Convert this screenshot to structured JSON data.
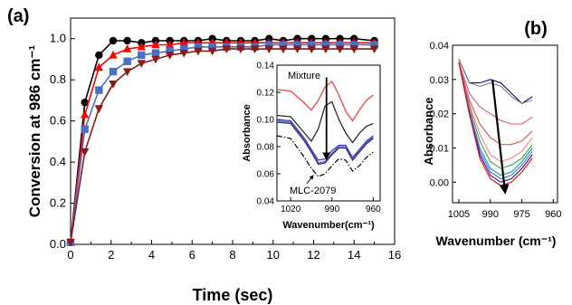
{
  "panel_labels": {
    "a": "(a)",
    "b": "(b)"
  },
  "chart_data": [
    {
      "panel": "(a)",
      "type": "line",
      "xlabel": "Time (sec)",
      "ylabel": "Conversion at 986 cm⁻¹",
      "xlim": [
        0,
        16
      ],
      "ylim": [
        0,
        1.1
      ],
      "xticks": [
        "0",
        "2",
        "4",
        "6",
        "8",
        "10",
        "12",
        "14",
        "16"
      ],
      "yticks": [
        "0.0",
        "0.2",
        "0.4",
        "0.6",
        "0.8",
        "1.0"
      ],
      "grid": false,
      "series": [
        {
          "marker": "circle",
          "color": "#000000",
          "x": [
            0,
            0.7,
            1.4,
            2.1,
            2.8,
            3.5,
            4.2,
            4.9,
            5.6,
            6.3,
            7.0,
            7.7,
            8.4,
            9.1,
            9.8,
            10.5,
            11.2,
            11.9,
            12.6,
            13.3,
            14.0,
            15.0
          ],
          "y": [
            0.01,
            0.69,
            0.92,
            0.99,
            0.99,
            0.98,
            0.99,
            0.99,
            0.99,
            0.99,
            1.0,
            0.99,
            0.99,
            0.99,
            1.0,
            0.99,
            1.0,
            1.0,
            1.0,
            1.0,
            1.0,
            0.99
          ]
        },
        {
          "marker": "triangle-up",
          "color": "#ff0000",
          "x": [
            0,
            0.7,
            1.4,
            2.1,
            2.8,
            3.5,
            4.2,
            4.9,
            5.6,
            6.3,
            7.0,
            7.7,
            8.4,
            9.1,
            9.8,
            10.5,
            11.2,
            11.9,
            12.6,
            13.3,
            14.0,
            15.0
          ],
          "y": [
            0.01,
            0.63,
            0.86,
            0.92,
            0.95,
            0.96,
            0.97,
            0.97,
            0.98,
            0.98,
            0.98,
            0.98,
            0.98,
            0.98,
            0.98,
            0.98,
            0.98,
            0.98,
            0.98,
            0.98,
            0.98,
            0.98
          ]
        },
        {
          "marker": "square",
          "color": "#4a6fc8",
          "x": [
            0,
            0.7,
            1.4,
            2.1,
            2.8,
            3.5,
            4.2,
            4.9,
            5.6,
            6.3,
            7.0,
            7.7,
            8.4,
            9.1,
            9.8,
            10.5,
            11.2,
            11.9,
            12.6,
            13.3,
            14.0,
            15.0
          ],
          "y": [
            0.01,
            0.56,
            0.75,
            0.84,
            0.89,
            0.92,
            0.93,
            0.94,
            0.95,
            0.96,
            0.96,
            0.96,
            0.96,
            0.96,
            0.97,
            0.97,
            0.97,
            0.97,
            0.97,
            0.97,
            0.97,
            0.97
          ]
        },
        {
          "marker": "triangle-down",
          "color": "#8b1a1a",
          "x": [
            0,
            0.7,
            1.4,
            2.1,
            2.8,
            3.5,
            4.2,
            4.9,
            5.6,
            6.3,
            7.0,
            7.7,
            8.4,
            9.1,
            9.8,
            10.5,
            11.2,
            11.9,
            12.6,
            13.3,
            14.0,
            15.0
          ],
          "y": [
            0.01,
            0.45,
            0.66,
            0.78,
            0.84,
            0.88,
            0.9,
            0.92,
            0.93,
            0.94,
            0.94,
            0.95,
            0.95,
            0.95,
            0.95,
            0.95,
            0.95,
            0.95,
            0.95,
            0.95,
            0.95,
            0.95
          ]
        }
      ]
    },
    {
      "panel": "(a) inset",
      "type": "line",
      "xlabel": "Wavenumber(cm⁻¹)",
      "ylabel": "Absorbance",
      "xlim": [
        1030,
        955
      ],
      "ylim": [
        0.04,
        0.14
      ],
      "xticks": [
        "1020",
        "990",
        "960"
      ],
      "yticks": [
        "0.04",
        "0.06",
        "0.08",
        "0.10",
        "0.12",
        "0.14"
      ],
      "annotations": [
        "Mixture",
        "MLC-2079"
      ],
      "arrow": {
        "x": 994,
        "from": 0.131,
        "to": 0.071
      },
      "series": [
        {
          "color": "#ff4040",
          "x": [
            1030,
            1020,
            1010,
            1005,
            1000,
            995,
            990,
            985,
            980,
            975,
            970,
            965,
            960
          ],
          "y": [
            0.122,
            0.121,
            0.112,
            0.107,
            0.114,
            0.124,
            0.128,
            0.118,
            0.106,
            0.099,
            0.107,
            0.114,
            0.118
          ]
        },
        {
          "color": "#2a2a2a",
          "x": [
            1030,
            1020,
            1010,
            1005,
            1000,
            995,
            990,
            985,
            980,
            975,
            970,
            965,
            960
          ],
          "y": [
            0.103,
            0.102,
            0.09,
            0.084,
            0.093,
            0.11,
            0.113,
            0.1,
            0.09,
            0.083,
            0.09,
            0.095,
            0.097
          ]
        },
        {
          "color": "#4040a0",
          "x": [
            1030,
            1020,
            1010,
            1005,
            1000,
            995,
            990,
            985,
            980,
            975,
            970,
            965,
            960
          ],
          "y": [
            0.1,
            0.099,
            0.086,
            0.078,
            0.07,
            0.071,
            0.077,
            0.081,
            0.081,
            0.072,
            0.078,
            0.084,
            0.088
          ]
        },
        {
          "color": "#6060c0",
          "x": [
            1030,
            1020,
            1010,
            1005,
            1000,
            995,
            990,
            985,
            980,
            975,
            970,
            965,
            960
          ],
          "y": [
            0.099,
            0.098,
            0.085,
            0.077,
            0.068,
            0.069,
            0.075,
            0.08,
            0.08,
            0.071,
            0.077,
            0.083,
            0.087
          ]
        },
        {
          "color": "#30308a",
          "x": [
            1030,
            1020,
            1010,
            1005,
            1000,
            995,
            990,
            985,
            980,
            975,
            970,
            965,
            960
          ],
          "y": [
            0.098,
            0.097,
            0.084,
            0.076,
            0.067,
            0.068,
            0.074,
            0.079,
            0.079,
            0.07,
            0.076,
            0.082,
            0.086
          ]
        },
        {
          "color": "#000000",
          "dash": "dashdot",
          "x": [
            1030,
            1020,
            1010,
            1005,
            1000,
            995,
            990,
            985,
            980,
            975,
            970,
            965,
            960
          ],
          "y": [
            0.088,
            0.086,
            0.072,
            0.064,
            0.058,
            0.06,
            0.066,
            0.071,
            0.07,
            0.062,
            0.066,
            0.072,
            0.076
          ]
        }
      ]
    },
    {
      "panel": "(b)",
      "type": "line",
      "xlabel": "Wavenumber (cm⁻¹)",
      "ylabel": "Absorbance",
      "xlim": [
        1008,
        958
      ],
      "ylim": [
        -0.006,
        0.04
      ],
      "xticks": [
        "1005",
        "990",
        "975",
        "960"
      ],
      "yticks": [
        "0.00",
        "0.01",
        "0.02",
        "0.03",
        "0.04"
      ],
      "arrow": {
        "x": 989,
        "from": 0.03,
        "to": -0.003
      },
      "series": [
        {
          "color": "#00008b",
          "x": [
            1005,
            1000,
            995,
            990,
            985,
            980,
            975,
            970
          ],
          "y": [
            0.036,
            0.029,
            0.029,
            0.03,
            0.029,
            0.026,
            0.023,
            0.025
          ]
        },
        {
          "color": "#808080",
          "x": [
            1005,
            1000,
            995,
            990,
            985,
            980,
            975,
            970
          ],
          "y": [
            0.036,
            0.029,
            0.028,
            0.029,
            0.028,
            0.025,
            0.023,
            0.024
          ]
        },
        {
          "color": "#d06080",
          "x": [
            1005,
            1000,
            995,
            990,
            985,
            980,
            975,
            970
          ],
          "y": [
            0.035,
            0.026,
            0.022,
            0.02,
            0.018,
            0.017,
            0.017,
            0.019
          ]
        },
        {
          "color": "#e05050",
          "x": [
            1005,
            1000,
            995,
            990,
            985,
            980,
            975,
            970
          ],
          "y": [
            0.035,
            0.024,
            0.017,
            0.013,
            0.011,
            0.011,
            0.012,
            0.015
          ]
        },
        {
          "color": "#ff8080",
          "x": [
            1005,
            1000,
            995,
            990,
            985,
            980,
            975,
            970
          ],
          "y": [
            0.035,
            0.023,
            0.014,
            0.008,
            0.006,
            0.007,
            0.009,
            0.013
          ]
        },
        {
          "color": "#40a040",
          "x": [
            1005,
            1000,
            995,
            990,
            985,
            980,
            975,
            970
          ],
          "y": [
            0.035,
            0.022,
            0.012,
            0.006,
            0.004,
            0.005,
            0.007,
            0.011
          ]
        },
        {
          "color": "#00a0a0",
          "x": [
            1005,
            1000,
            995,
            990,
            985,
            980,
            975,
            970
          ],
          "y": [
            0.035,
            0.021,
            0.01,
            0.004,
            0.002,
            0.003,
            0.006,
            0.01
          ]
        },
        {
          "color": "#6060ff",
          "x": [
            1005,
            1000,
            995,
            990,
            985,
            980,
            975,
            970
          ],
          "y": [
            0.035,
            0.021,
            0.009,
            0.003,
            0.001,
            0.002,
            0.005,
            0.009
          ]
        },
        {
          "color": "#202080",
          "x": [
            1005,
            1000,
            995,
            990,
            985,
            980,
            975,
            970
          ],
          "y": [
            0.035,
            0.02,
            0.008,
            0.002,
            0.0,
            0.001,
            0.004,
            0.008
          ]
        },
        {
          "color": "#ff0000",
          "x": [
            1005,
            1000,
            995,
            990,
            985,
            980,
            975,
            970
          ],
          "y": [
            0.035,
            0.02,
            0.007,
            0.001,
            -0.001,
            0.0,
            0.003,
            0.007
          ]
        }
      ]
    }
  ]
}
